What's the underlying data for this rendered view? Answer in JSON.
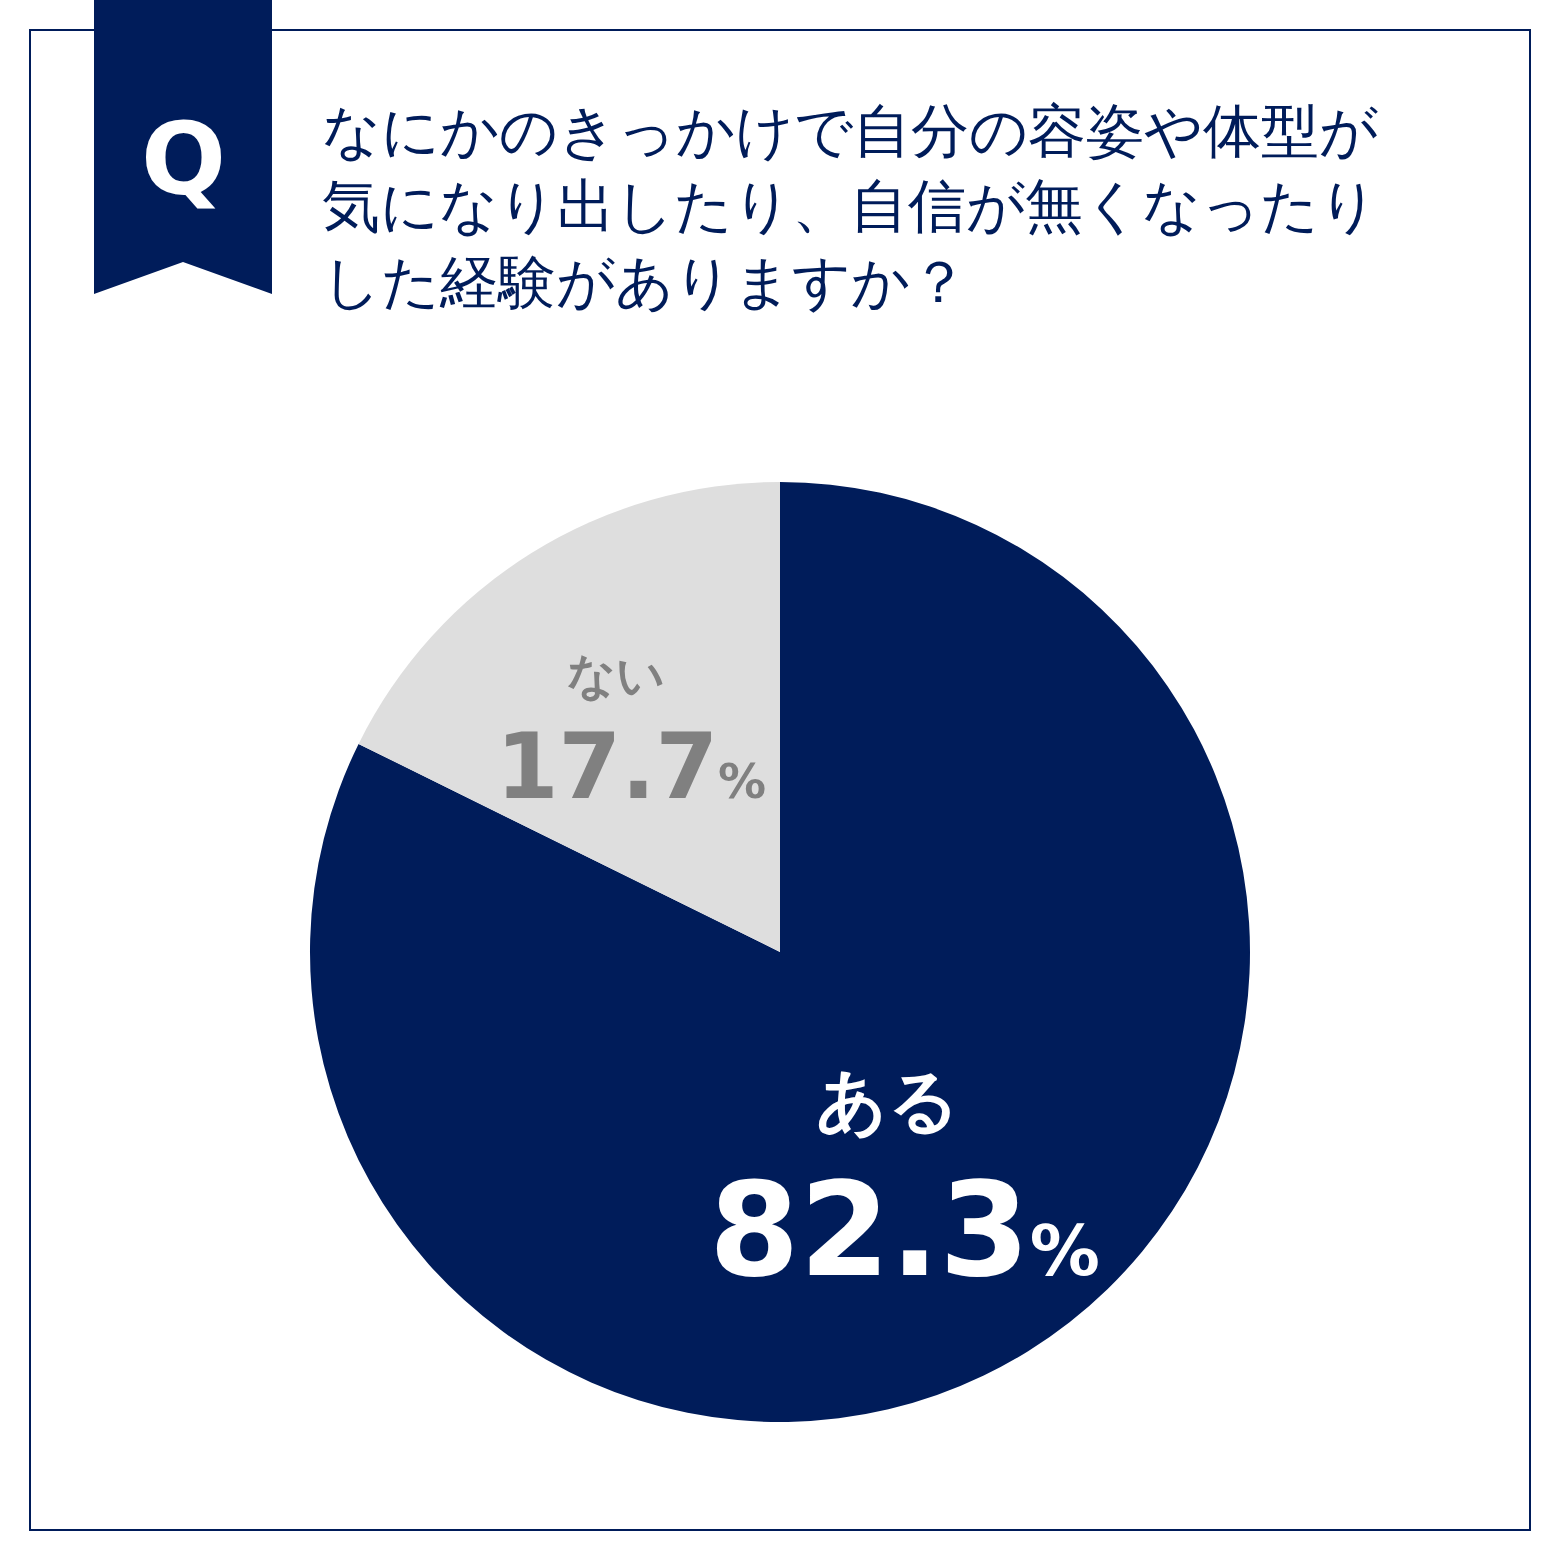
{
  "chart_data": {
    "type": "pie",
    "title": "なにかのきっかけで自分の容姿や体型が気になり出したり、自信が無くなったりした経験がありますか？",
    "annotations": [
      "Q"
    ],
    "categories": [
      "ある",
      "ない"
    ],
    "values": [
      82.3,
      17.7
    ],
    "value_labels": [
      "82.3%",
      "17.7%"
    ],
    "colors": [
      "#001c5a",
      "#dedede"
    ],
    "legend": false
  }
}
